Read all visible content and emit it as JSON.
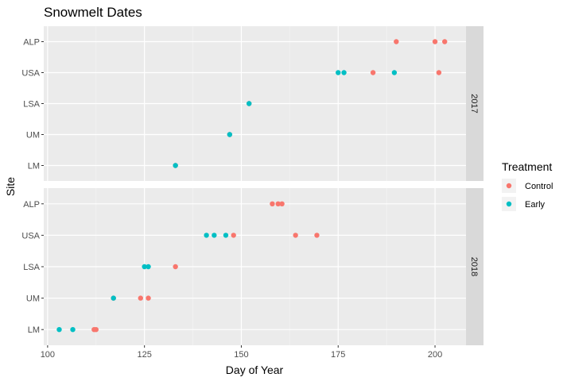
{
  "chart_data": {
    "type": "scatter",
    "title": "Snowmelt Dates",
    "xlabel": "Day of Year",
    "ylabel": "Site",
    "xlim": [
      99,
      208
    ],
    "x_ticks": [
      100,
      125,
      150,
      175,
      200
    ],
    "categories": [
      "LM",
      "UM",
      "LSA",
      "USA",
      "ALP"
    ],
    "grid": true,
    "legend": {
      "title": "Treatment",
      "position": "right"
    },
    "series": [
      {
        "name": "Control",
        "color": "#F8766D"
      },
      {
        "name": "Early",
        "color": "#00BFC4"
      }
    ],
    "facets": [
      {
        "label": "2017",
        "points": [
          {
            "site": "ALP",
            "x": 190,
            "treatment": "Control"
          },
          {
            "site": "ALP",
            "x": 200,
            "treatment": "Control"
          },
          {
            "site": "ALP",
            "x": 202.5,
            "treatment": "Control"
          },
          {
            "site": "USA",
            "x": 175,
            "treatment": "Early"
          },
          {
            "site": "USA",
            "x": 176.5,
            "treatment": "Early"
          },
          {
            "site": "USA",
            "x": 184,
            "treatment": "Control"
          },
          {
            "site": "USA",
            "x": 189.5,
            "treatment": "Early"
          },
          {
            "site": "USA",
            "x": 201,
            "treatment": "Control"
          },
          {
            "site": "LSA",
            "x": 152,
            "treatment": "Control"
          },
          {
            "site": "LSA",
            "x": 152,
            "treatment": "Early"
          },
          {
            "site": "UM",
            "x": 147,
            "treatment": "Control"
          },
          {
            "site": "UM",
            "x": 147,
            "treatment": "Early"
          },
          {
            "site": "LM",
            "x": 133,
            "treatment": "Control"
          },
          {
            "site": "LM",
            "x": 133,
            "treatment": "Early"
          }
        ]
      },
      {
        "label": "2018",
        "points": [
          {
            "site": "ALP",
            "x": 158,
            "treatment": "Control"
          },
          {
            "site": "ALP",
            "x": 159.5,
            "treatment": "Control"
          },
          {
            "site": "ALP",
            "x": 160.5,
            "treatment": "Control"
          },
          {
            "site": "USA",
            "x": 141,
            "treatment": "Early"
          },
          {
            "site": "USA",
            "x": 143,
            "treatment": "Early"
          },
          {
            "site": "USA",
            "x": 146,
            "treatment": "Early"
          },
          {
            "site": "USA",
            "x": 148,
            "treatment": "Control"
          },
          {
            "site": "USA",
            "x": 164,
            "treatment": "Control"
          },
          {
            "site": "USA",
            "x": 169.5,
            "treatment": "Control"
          },
          {
            "site": "LSA",
            "x": 125,
            "treatment": "Early"
          },
          {
            "site": "LSA",
            "x": 126,
            "treatment": "Early"
          },
          {
            "site": "LSA",
            "x": 133,
            "treatment": "Control"
          },
          {
            "site": "UM",
            "x": 117,
            "treatment": "Control"
          },
          {
            "site": "UM",
            "x": 117,
            "treatment": "Early"
          },
          {
            "site": "UM",
            "x": 124,
            "treatment": "Control"
          },
          {
            "site": "UM",
            "x": 126,
            "treatment": "Control"
          },
          {
            "site": "LM",
            "x": 103,
            "treatment": "Early"
          },
          {
            "site": "LM",
            "x": 106.5,
            "treatment": "Early"
          },
          {
            "site": "LM",
            "x": 112,
            "treatment": "Control"
          },
          {
            "site": "LM",
            "x": 112.5,
            "treatment": "Control"
          }
        ]
      }
    ]
  }
}
